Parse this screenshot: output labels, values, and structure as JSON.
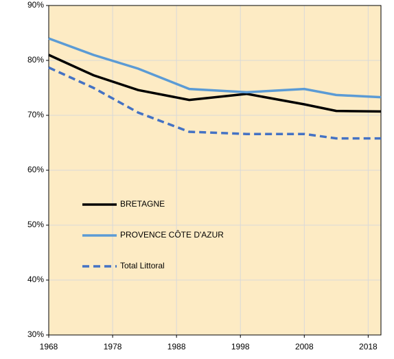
{
  "chart_data": {
    "type": "line",
    "x": [
      1968,
      1975,
      1982,
      1990,
      1999,
      2008,
      2013,
      2020
    ],
    "series": [
      {
        "name": "BRETAGNE",
        "color": "#000000",
        "dash": false,
        "values": [
          81,
          77.3,
          74.6,
          72.8,
          73.9,
          72,
          70.8,
          70.7
        ]
      },
      {
        "name": "PROVENCE CÔTE D'AZUR",
        "color": "#5b9bd5",
        "dash": false,
        "values": [
          84,
          81,
          78.5,
          74.8,
          74.2,
          74.8,
          73.7,
          73.3
        ]
      },
      {
        "name": "Total Littoral",
        "color": "#4472c4",
        "dash": true,
        "values": [
          78.7,
          75,
          70.5,
          67,
          66.6,
          66.6,
          65.8,
          65.8
        ]
      }
    ],
    "xlim": [
      1968,
      2020
    ],
    "xticks": [
      1968,
      1978,
      1988,
      1998,
      2008,
      2018
    ],
    "ylim": [
      30,
      90
    ],
    "yticks": [
      {
        "value": 30,
        "label": "30%"
      },
      {
        "value": 40,
        "label": "40%"
      },
      {
        "value": 50,
        "label": "50%"
      },
      {
        "value": 60,
        "label": "60%"
      },
      {
        "value": 70,
        "label": "70%"
      },
      {
        "value": 80,
        "label": "80%"
      },
      {
        "value": 90,
        "label": "90%"
      }
    ],
    "grid": true,
    "background": "#fdebc4"
  }
}
